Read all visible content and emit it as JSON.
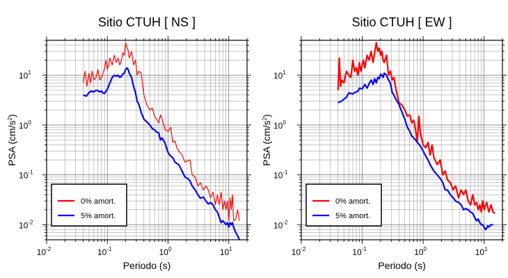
{
  "chart_data": [
    {
      "type": "line",
      "title": "Sitio CTUH [ NS ]",
      "xlabel": "Periodo (s)",
      "ylabel": "PSA (cm/s2)",
      "xscale": "log",
      "yscale": "log",
      "xlim": [
        0.01,
        20
      ],
      "ylim": [
        0.005,
        50
      ],
      "xticks": [
        {
          "base": "10",
          "exp": "-2"
        },
        {
          "base": "10",
          "exp": "-1"
        },
        {
          "base": "10",
          "exp": "0"
        },
        {
          "base": "10",
          "exp": "1"
        }
      ],
      "yticks": [
        {
          "base": "10",
          "exp": "-2",
          "value": 0.01
        },
        {
          "base": "10",
          "exp": "-1",
          "value": 0.1
        },
        {
          "base": "10",
          "exp": "0",
          "value": 1
        },
        {
          "base": "10",
          "exp": "1",
          "value": 10
        }
      ],
      "grid": true,
      "legend_position": "bottom-left",
      "series": [
        {
          "name": "0% amort.",
          "color": "#ff0000",
          "stroke": 1.2,
          "x": [
            0.04,
            0.043,
            0.046,
            0.05,
            0.053,
            0.056,
            0.06,
            0.065,
            0.07,
            0.075,
            0.08,
            0.085,
            0.09,
            0.095,
            0.1,
            0.105,
            0.11,
            0.12,
            0.13,
            0.14,
            0.15,
            0.16,
            0.17,
            0.18,
            0.19,
            0.2,
            0.21,
            0.22,
            0.23,
            0.25,
            0.27,
            0.29,
            0.31,
            0.33,
            0.36,
            0.4,
            0.45,
            0.5,
            0.55,
            0.6,
            0.65,
            0.7,
            0.75,
            0.8,
            0.9,
            1.0,
            1.1,
            1.2,
            1.3,
            1.4,
            1.5,
            1.7,
            1.9,
            2.1,
            2.3,
            2.5,
            2.8,
            3.1,
            3.4,
            3.8,
            4.2,
            4.6,
            5.0,
            5.5,
            6.0,
            6.5,
            7.0,
            7.5,
            8.0,
            8.5,
            9.0,
            9.5,
            10,
            10.5,
            11,
            11.5,
            12,
            13,
            14,
            15
          ],
          "y": [
            7,
            12,
            6,
            11,
            7,
            12,
            8,
            9,
            13,
            8,
            9,
            11,
            14,
            20,
            13,
            16,
            22,
            16,
            25,
            18,
            22,
            16,
            20,
            28,
            25,
            45,
            35,
            32,
            22,
            30,
            16,
            20,
            10,
            12,
            11,
            4,
            2.5,
            2,
            2.2,
            1.5,
            1.3,
            1.1,
            1.6,
            1.3,
            0.8,
            0.75,
            0.9,
            0.45,
            0.48,
            0.35,
            0.3,
            0.25,
            0.18,
            0.19,
            0.2,
            0.1,
            0.09,
            0.06,
            0.07,
            0.05,
            0.06,
            0.05,
            0.035,
            0.045,
            0.025,
            0.04,
            0.025,
            0.045,
            0.02,
            0.03,
            0.02,
            0.03,
            0.012,
            0.035,
            0.02,
            0.04,
            0.012,
            0.013,
            0.02,
            0.012
          ]
        },
        {
          "name": "5% amort.",
          "color": "#0000ff",
          "stroke": 2.2,
          "x": [
            0.04,
            0.045,
            0.05,
            0.055,
            0.06,
            0.065,
            0.07,
            0.075,
            0.08,
            0.085,
            0.09,
            0.1,
            0.11,
            0.12,
            0.13,
            0.14,
            0.15,
            0.16,
            0.17,
            0.18,
            0.19,
            0.2,
            0.21,
            0.22,
            0.23,
            0.25,
            0.27,
            0.29,
            0.31,
            0.33,
            0.36,
            0.4,
            0.45,
            0.5,
            0.55,
            0.6,
            0.65,
            0.7,
            0.75,
            0.8,
            0.9,
            1.0,
            1.1,
            1.2,
            1.3,
            1.5,
            1.7,
            1.9,
            2.1,
            2.3,
            2.5,
            2.8,
            3.1,
            3.4,
            3.8,
            4.2,
            4.6,
            5.0,
            5.5,
            6.0,
            6.5,
            7.0,
            7.5,
            8.0,
            8.5,
            9.0,
            9.5,
            10,
            10.5,
            11,
            11.5,
            12,
            13,
            14,
            15
          ],
          "y": [
            4,
            3.8,
            4.5,
            4.8,
            4.6,
            5,
            4.9,
            4.6,
            4.8,
            4.4,
            4.3,
            5.2,
            7,
            9,
            10,
            9.5,
            10,
            9,
            9.5,
            10.5,
            11,
            13,
            14,
            13,
            11,
            9,
            6,
            4.5,
            3,
            2.6,
            1.8,
            1.3,
            1.15,
            1,
            0.85,
            0.8,
            0.72,
            0.7,
            0.5,
            0.55,
            0.42,
            0.28,
            0.24,
            0.22,
            0.18,
            0.16,
            0.12,
            0.09,
            0.085,
            0.075,
            0.06,
            0.05,
            0.04,
            0.034,
            0.036,
            0.03,
            0.026,
            0.028,
            0.025,
            0.02,
            0.018,
            0.014,
            0.011,
            0.012,
            0.011,
            0.01,
            0.011,
            0.009,
            0.011,
            0.01,
            0.011,
            0.009,
            0.007,
            0.006,
            0.005
          ]
        }
      ]
    },
    {
      "type": "line",
      "title": "Sitio CTUH [ EW ]",
      "xlabel": "Periodo (s)",
      "ylabel": "PSA (cm/s2)",
      "xscale": "log",
      "yscale": "log",
      "xlim": [
        0.01,
        20
      ],
      "ylim": [
        0.005,
        50
      ],
      "xticks": [
        {
          "base": "10",
          "exp": "-2"
        },
        {
          "base": "10",
          "exp": "-1"
        },
        {
          "base": "10",
          "exp": "0"
        },
        {
          "base": "10",
          "exp": "1"
        }
      ],
      "yticks": [
        {
          "base": "10",
          "exp": "-2",
          "value": 0.01
        },
        {
          "base": "10",
          "exp": "-1",
          "value": 0.1
        },
        {
          "base": "10",
          "exp": "0",
          "value": 1
        },
        {
          "base": "10",
          "exp": "1",
          "value": 10
        }
      ],
      "grid": true,
      "legend_position": "bottom-left",
      "series": [
        {
          "name": "0% amort.",
          "color": "#ff0000",
          "stroke": 2.2,
          "x": [
            0.04,
            0.042,
            0.044,
            0.046,
            0.05,
            0.055,
            0.06,
            0.065,
            0.07,
            0.075,
            0.08,
            0.085,
            0.09,
            0.095,
            0.1,
            0.105,
            0.11,
            0.12,
            0.13,
            0.14,
            0.15,
            0.16,
            0.17,
            0.18,
            0.19,
            0.2,
            0.21,
            0.22,
            0.23,
            0.25,
            0.27,
            0.29,
            0.31,
            0.33,
            0.36,
            0.4,
            0.45,
            0.5,
            0.55,
            0.6,
            0.65,
            0.7,
            0.75,
            0.8,
            0.85,
            0.9,
            1.0,
            1.1,
            1.2,
            1.3,
            1.4,
            1.5,
            1.7,
            1.9,
            2.1,
            2.3,
            2.5,
            2.8,
            3.1,
            3.4,
            3.8,
            4.2,
            4.6,
            5.0,
            5.5,
            6.0,
            6.5,
            7.0,
            7.5,
            8.0,
            8.5,
            9.0,
            9.5,
            10,
            11,
            12,
            13,
            14,
            15
          ],
          "y": [
            5,
            22,
            6,
            8,
            7,
            12,
            10,
            9,
            20,
            12,
            14,
            10,
            18,
            12,
            16,
            20,
            14,
            25,
            20,
            30,
            18,
            28,
            45,
            30,
            35,
            25,
            30,
            20,
            18,
            25,
            10,
            12,
            8,
            9,
            5,
            2.8,
            2.5,
            2,
            1.5,
            1.6,
            1.1,
            1.25,
            0.8,
            0.45,
            1.5,
            0.7,
            0.4,
            0.35,
            0.45,
            0.25,
            0.4,
            0.22,
            0.16,
            0.2,
            0.1,
            0.12,
            0.08,
            0.07,
            0.05,
            0.06,
            0.035,
            0.05,
            0.04,
            0.05,
            0.03,
            0.025,
            0.04,
            0.025,
            0.028,
            0.02,
            0.025,
            0.018,
            0.03,
            0.02,
            0.028,
            0.018,
            0.025,
            0.018,
            0.017
          ]
        },
        {
          "name": "5% amort.",
          "color": "#0000ff",
          "stroke": 2.2,
          "x": [
            0.04,
            0.045,
            0.05,
            0.055,
            0.06,
            0.065,
            0.07,
            0.075,
            0.08,
            0.085,
            0.09,
            0.1,
            0.11,
            0.12,
            0.13,
            0.14,
            0.15,
            0.16,
            0.17,
            0.18,
            0.19,
            0.2,
            0.21,
            0.22,
            0.23,
            0.25,
            0.27,
            0.29,
            0.31,
            0.33,
            0.36,
            0.4,
            0.45,
            0.5,
            0.55,
            0.6,
            0.65,
            0.7,
            0.75,
            0.8,
            0.9,
            1.0,
            1.1,
            1.2,
            1.3,
            1.5,
            1.7,
            1.9,
            2.1,
            2.3,
            2.5,
            2.8,
            3.1,
            3.4,
            3.8,
            4.2,
            4.6,
            5.0,
            5.5,
            6.0,
            6.5,
            7.0,
            7.5,
            8.0,
            8.5,
            9.0,
            9.5,
            10,
            10.5,
            11,
            11.5,
            12,
            13,
            14
          ],
          "y": [
            2.8,
            3,
            3.3,
            3.6,
            4.4,
            4.3,
            4.2,
            4.5,
            4.6,
            4.8,
            5.5,
            5.3,
            6.5,
            5.5,
            6.8,
            8,
            6.5,
            8.5,
            7,
            9,
            8.5,
            10.5,
            10,
            9,
            11,
            10,
            8,
            7,
            4.5,
            4,
            3.2,
            2.6,
            1.8,
            1.3,
            0.9,
            0.75,
            0.6,
            0.55,
            0.5,
            0.45,
            0.38,
            0.3,
            0.24,
            0.2,
            0.16,
            0.12,
            0.1,
            0.085,
            0.07,
            0.05,
            0.05,
            0.04,
            0.035,
            0.03,
            0.028,
            0.025,
            0.02,
            0.021,
            0.02,
            0.018,
            0.017,
            0.014,
            0.012,
            0.013,
            0.011,
            0.01,
            0.01,
            0.009,
            0.008,
            0.0085,
            0.0095,
            0.009,
            0.01,
            0.01
          ]
        }
      ]
    }
  ]
}
